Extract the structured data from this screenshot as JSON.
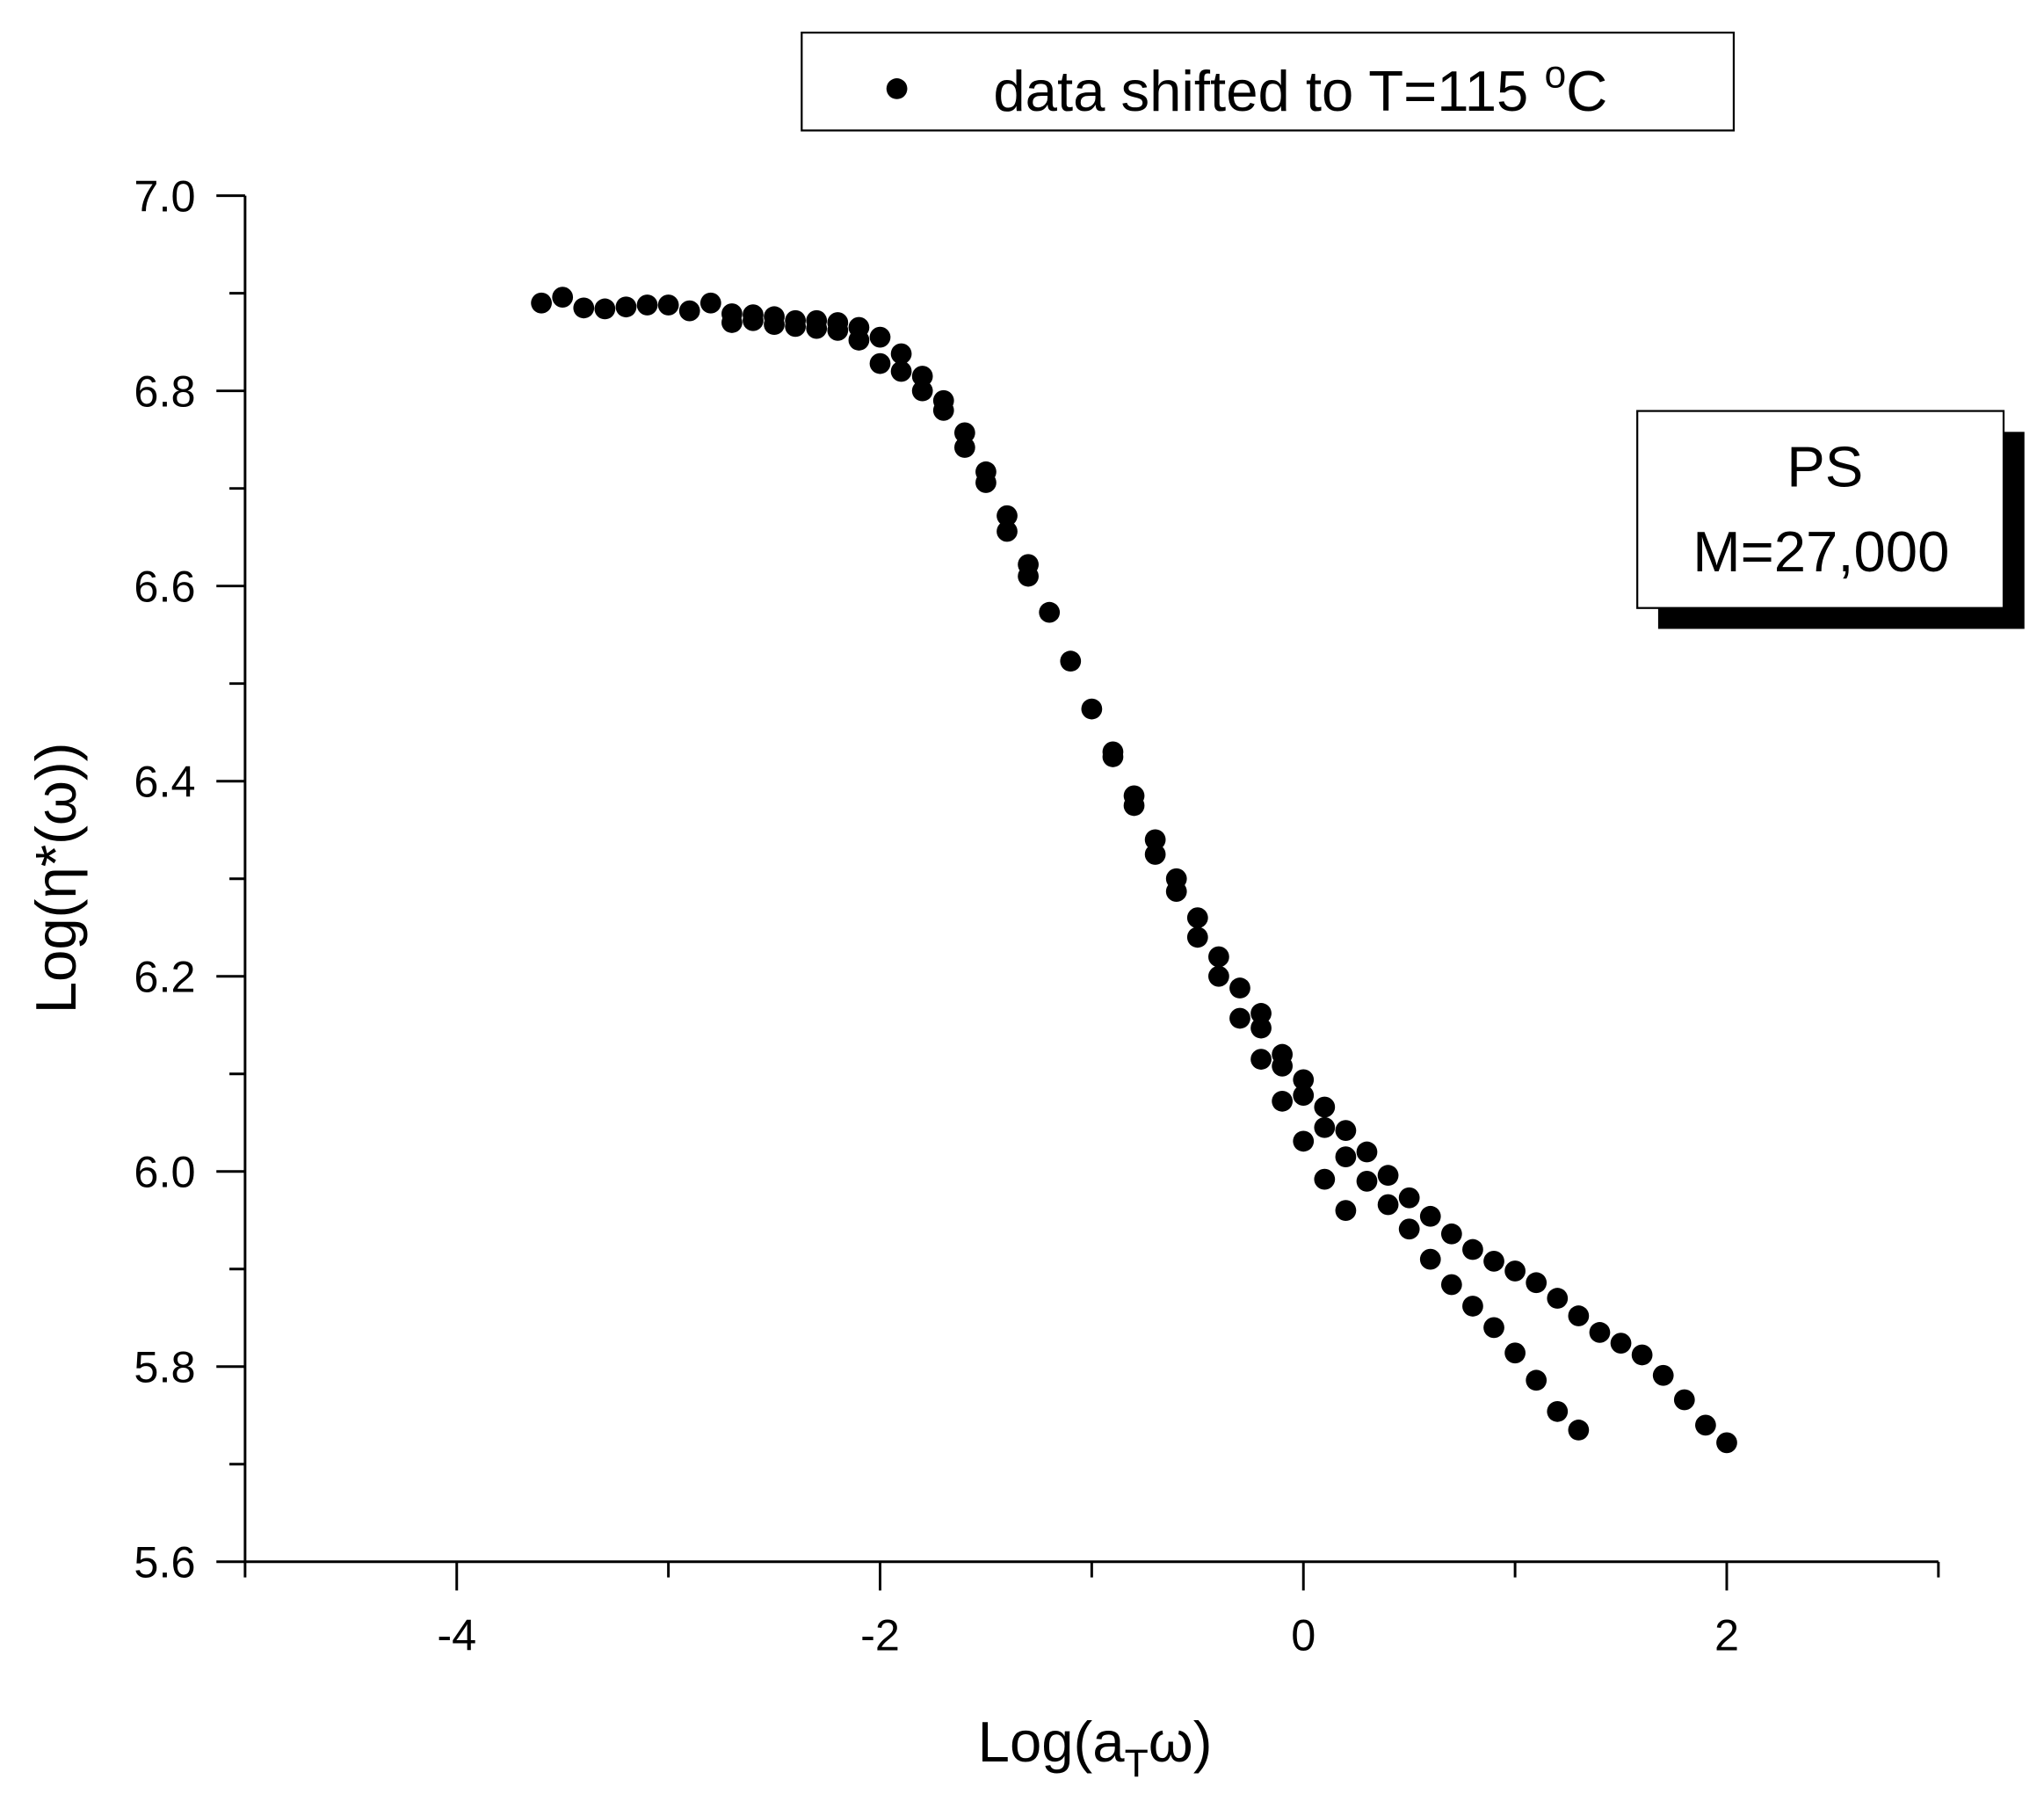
{
  "chart_data": {
    "type": "scatter",
    "xlabel": [
      "Log(a",
      "T",
      "ω)"
    ],
    "ylabel": "Log(η*(ω))",
    "annotation": [
      "PS",
      "M=27,000"
    ],
    "series": [
      {
        "name": [
          "data shifted to T=115 ",
          "o",
          "C"
        ],
        "color": "#000000",
        "x": [
          -3.6,
          -3.5,
          -3.4,
          -3.3,
          -3.2,
          -3.1,
          -3.0,
          -2.9,
          -2.8,
          -2.7,
          -2.7,
          -2.6,
          -2.6,
          -2.5,
          -2.5,
          -2.4,
          -2.4,
          -2.3,
          -2.3,
          -2.2,
          -2.2,
          -2.1,
          -2.1,
          -2.0,
          -2.0,
          -1.9,
          -1.9,
          -1.8,
          -1.8,
          -1.7,
          -1.7,
          -1.6,
          -1.6,
          -1.5,
          -1.5,
          -1.4,
          -1.4,
          -1.3,
          -1.3,
          -1.2,
          -1.1,
          -1.0,
          -0.9,
          -0.9,
          -0.8,
          -0.8,
          -0.7,
          -0.7,
          -0.6,
          -0.6,
          -0.5,
          -0.5,
          -0.4,
          -0.4,
          -0.3,
          -0.3,
          -0.2,
          -0.2,
          -0.2,
          -0.1,
          -0.1,
          -0.1,
          0.0,
          0.0,
          0.0,
          0.1,
          0.1,
          0.1,
          0.2,
          0.2,
          0.2,
          0.3,
          0.3,
          0.4,
          0.4,
          0.5,
          0.5,
          0.6,
          0.6,
          0.7,
          0.7,
          0.8,
          0.8,
          0.9,
          0.9,
          1.0,
          1.0,
          1.1,
          1.1,
          1.2,
          1.2,
          1.3,
          1.3,
          1.4,
          1.5,
          1.6,
          1.7,
          1.8,
          1.9,
          2.0
        ],
        "y": [
          6.89,
          6.896,
          6.885,
          6.884,
          6.886,
          6.888,
          6.888,
          6.882,
          6.89,
          6.879,
          6.87,
          6.878,
          6.872,
          6.876,
          6.868,
          6.872,
          6.866,
          6.872,
          6.864,
          6.87,
          6.862,
          6.865,
          6.852,
          6.855,
          6.828,
          6.838,
          6.82,
          6.815,
          6.8,
          6.79,
          6.78,
          6.757,
          6.742,
          6.717,
          6.706,
          6.672,
          6.656,
          6.622,
          6.61,
          6.573,
          6.523,
          6.474,
          6.43,
          6.425,
          6.385,
          6.375,
          6.34,
          6.325,
          6.3,
          6.287,
          6.26,
          6.24,
          6.22,
          6.2,
          6.188,
          6.157,
          6.162,
          6.147,
          6.115,
          6.12,
          6.108,
          6.072,
          6.094,
          6.078,
          6.031,
          6.066,
          6.045,
          5.992,
          6.042,
          6.015,
          5.96,
          6.02,
          5.99,
          5.996,
          5.966,
          5.973,
          5.941,
          5.954,
          5.91,
          5.936,
          5.884,
          5.92,
          5.862,
          5.908,
          5.84,
          5.898,
          5.814,
          5.886,
          5.786,
          5.87,
          5.754,
          5.852,
          5.735,
          5.835,
          5.824,
          5.812,
          5.791,
          5.766,
          5.74,
          5.722
        ]
      }
    ],
    "xlim": [
      -5,
      3
    ],
    "ylim": [
      5.6,
      7.0
    ],
    "xticks": [
      -4,
      -2,
      0,
      2
    ],
    "xminorticks": [
      -5,
      -3,
      -1,
      1,
      3
    ],
    "yticks": [
      5.6,
      5.8,
      {
        "value": 6,
        "label": "6.0"
      },
      6.2,
      6.4,
      6.6,
      6.8,
      {
        "value": 7,
        "label": "7.0"
      }
    ],
    "yminorticks": [
      5.7,
      5.9,
      6.1,
      6.3,
      6.5,
      6.7,
      6.9
    ]
  }
}
